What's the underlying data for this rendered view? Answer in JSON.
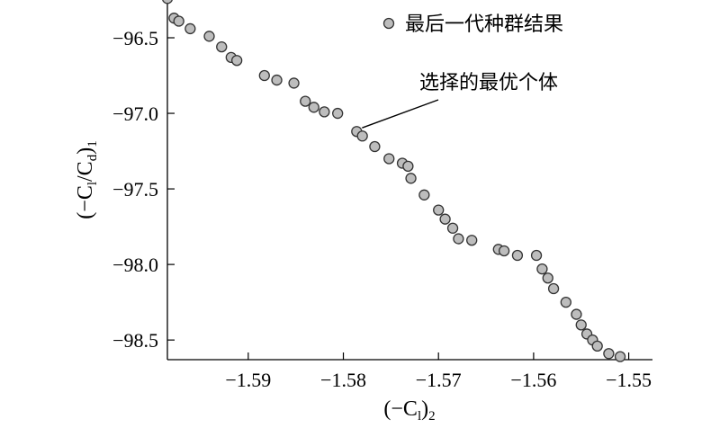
{
  "chart_data": {
    "type": "scatter",
    "x_axis": {
      "label_base": "(−C",
      "label_sub": "l",
      "label_close": ")",
      "label_post_sub": "2",
      "range": [
        -1.5985,
        -1.5475
      ],
      "ticks": [
        -1.59,
        -1.58,
        -1.57,
        -1.56,
        -1.55
      ],
      "tick_labels": [
        "−1.59",
        "−1.58",
        "−1.57",
        "−1.56",
        "−1.55"
      ]
    },
    "y_axis": {
      "label_part1": "(−C",
      "label_sub1": "l",
      "label_part2": "/C",
      "label_sub2": "d",
      "label_close": ")",
      "label_post_sub": "1",
      "range": [
        -98.63,
        -96.25
      ],
      "ticks": [
        -96.5,
        -97.0,
        -97.5,
        -98.0,
        -98.5
      ],
      "tick_labels": [
        "−96.5",
        "−97.0",
        "−97.5",
        "−98.0",
        "−98.5"
      ]
    },
    "series": [
      {
        "name": "最后一代种群结果",
        "color": "#bdbdbd",
        "points": [
          [
            -1.5985,
            -96.24
          ],
          [
            -1.5978,
            -96.37
          ],
          [
            -1.5973,
            -96.39
          ],
          [
            -1.5961,
            -96.44
          ],
          [
            -1.5941,
            -96.49
          ],
          [
            -1.5928,
            -96.56
          ],
          [
            -1.5918,
            -96.63
          ],
          [
            -1.5912,
            -96.65
          ],
          [
            -1.5883,
            -96.75
          ],
          [
            -1.587,
            -96.78
          ],
          [
            -1.5852,
            -96.8
          ],
          [
            -1.584,
            -96.92
          ],
          [
            -1.5831,
            -96.96
          ],
          [
            -1.582,
            -96.99
          ],
          [
            -1.5806,
            -97.0
          ],
          [
            -1.5786,
            -97.12
          ],
          [
            -1.578,
            -97.15
          ],
          [
            -1.5767,
            -97.22
          ],
          [
            -1.5752,
            -97.3
          ],
          [
            -1.5738,
            -97.33
          ],
          [
            -1.5732,
            -97.35
          ],
          [
            -1.5729,
            -97.43
          ],
          [
            -1.5715,
            -97.54
          ],
          [
            -1.57,
            -97.64
          ],
          [
            -1.5693,
            -97.7
          ],
          [
            -1.5685,
            -97.76
          ],
          [
            -1.5679,
            -97.83
          ],
          [
            -1.5665,
            -97.84
          ],
          [
            -1.5637,
            -97.9
          ],
          [
            -1.5631,
            -97.91
          ],
          [
            -1.5617,
            -97.94
          ],
          [
            -1.5597,
            -97.94
          ],
          [
            -1.5591,
            -98.03
          ],
          [
            -1.5585,
            -98.09
          ],
          [
            -1.5579,
            -98.16
          ],
          [
            -1.5566,
            -98.25
          ],
          [
            -1.5555,
            -98.33
          ],
          [
            -1.555,
            -98.4
          ],
          [
            -1.5544,
            -98.46
          ],
          [
            -1.5538,
            -98.5
          ],
          [
            -1.5533,
            -98.54
          ],
          [
            -1.5521,
            -98.59
          ],
          [
            -1.5509,
            -98.61
          ]
        ]
      }
    ],
    "legend": {
      "position": "top-right",
      "label": "最后一代种群结果"
    },
    "annotation": {
      "text": "选择的最优个体",
      "point": [
        -1.5786,
        -97.12
      ]
    },
    "grid": false
  }
}
